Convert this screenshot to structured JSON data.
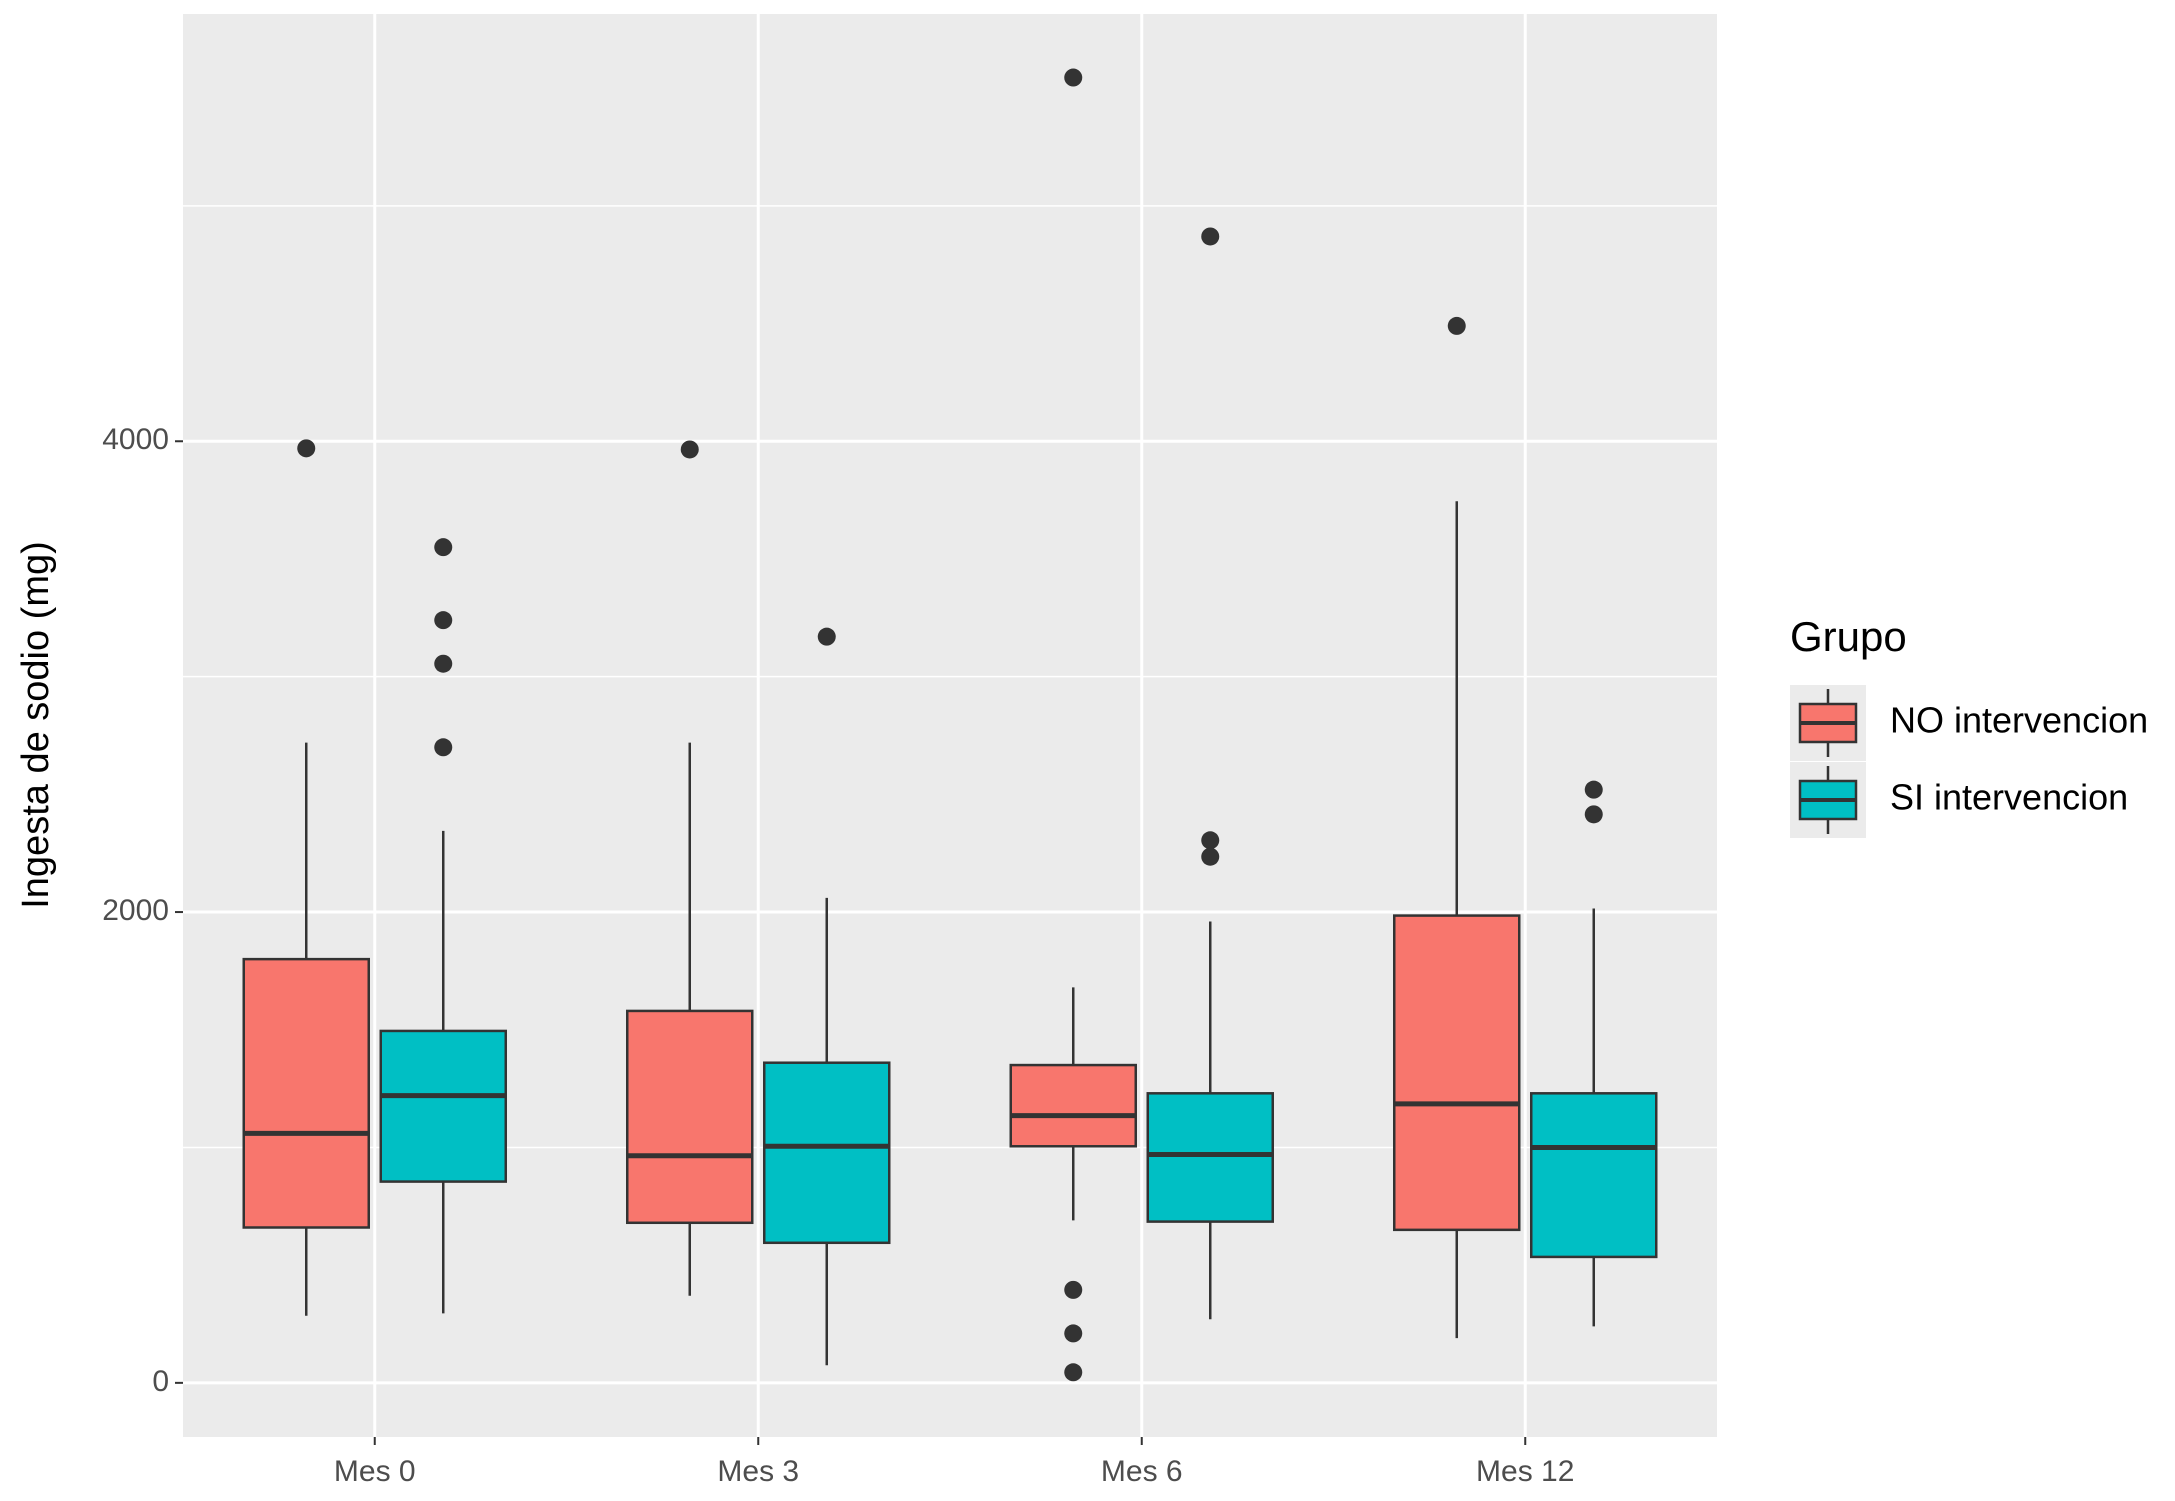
{
  "chart_data": {
    "type": "boxplot",
    "y_label": "Ingesta de sodio (mg)",
    "legend_title": "Grupo",
    "legend_position": "right",
    "grid": true,
    "categories": [
      "Mes 0",
      "Mes 3",
      "Mes 6",
      "Mes 12"
    ],
    "ylim": [
      -230,
      5815
    ],
    "yticks": [
      0,
      2000,
      4000
    ],
    "minor_yticks": [
      1000,
      3000,
      5000
    ],
    "series": [
      {
        "name": "NO intervencion",
        "color": "#F8766D",
        "stats": [
          {
            "whislo": 285,
            "q1": 660,
            "med": 1060,
            "q3": 1800,
            "whishi": 2720,
            "fliers": [
              3970
            ]
          },
          {
            "whislo": 370,
            "q1": 680,
            "med": 965,
            "q3": 1580,
            "whishi": 2720,
            "fliers": [
              3965
            ]
          },
          {
            "whislo": 690,
            "q1": 1005,
            "med": 1135,
            "q3": 1350,
            "whishi": 1680,
            "fliers": [
              5545,
              395,
              210,
              45
            ]
          },
          {
            "whislo": 190,
            "q1": 650,
            "med": 1185,
            "q3": 1985,
            "whishi": 3745,
            "fliers": [
              4490
            ]
          }
        ]
      },
      {
        "name": "SI intervencion",
        "color": "#00BFC4",
        "stats": [
          {
            "whislo": 295,
            "q1": 855,
            "med": 1220,
            "q3": 1495,
            "whishi": 2345,
            "fliers": [
              3550,
              3240,
              3055,
              2700
            ]
          },
          {
            "whislo": 75,
            "q1": 595,
            "med": 1005,
            "q3": 1360,
            "whishi": 2060,
            "fliers": [
              3170
            ]
          },
          {
            "whislo": 270,
            "q1": 685,
            "med": 970,
            "q3": 1230,
            "whishi": 1960,
            "fliers": [
              4870,
              2305,
              2235
            ]
          },
          {
            "whislo": 240,
            "q1": 535,
            "med": 1000,
            "q3": 1230,
            "whishi": 2015,
            "fliers": [
              2520,
              2415
            ]
          }
        ]
      }
    ]
  }
}
